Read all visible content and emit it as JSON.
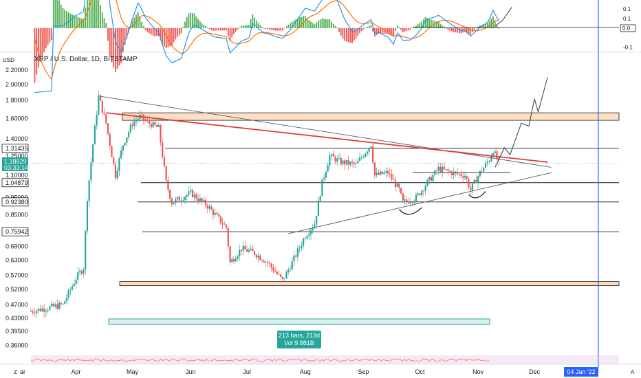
{
  "header": {
    "title": "XRP / U.S. Dollar, 1D, BITSTAMP",
    "currency_label": "USD"
  },
  "colors": {
    "up": "#26a69a",
    "down": "#ef5350",
    "trend": "#e53935",
    "zone_fill": "#ffcc99",
    "marker_blue": "#2962ff",
    "macd_line": "#2196f3",
    "signal_line": "#ff6d00",
    "hist_up": "#4caf50",
    "hist_down": "#ef5350"
  },
  "date_axis": {
    "labels": [
      "Z",
      "ar",
      "Apr",
      "May",
      "Jun",
      "Jul",
      "Aug",
      "Sep",
      "Oct",
      "Nov",
      "Dec"
    ],
    "highlight": "04 Jan '22",
    "corner_right": "A"
  },
  "price_axis": {
    "ticks": [
      "2.20000",
      "2.00000",
      "1.80000",
      "1.60000",
      "1.40000",
      "1.25000",
      "1.10000",
      "0.95000",
      "0.85000",
      "0.69000",
      "0.63000",
      "0.57000",
      "0.52000",
      "0.47000",
      "0.43000",
      "0.39500",
      "0.36000"
    ],
    "boxed_labels": [
      "1.31435",
      "1.04879",
      "0.92380",
      "0.75942"
    ],
    "current_price": "1.18929",
    "countdown": "03:33:14"
  },
  "macd_axis": {
    "ticks": [
      "0.1",
      "0.1",
      "0.0",
      "-0.1"
    ],
    "current": "0.0"
  },
  "range_measure": {
    "line1": "213 bars, 213d",
    "line2": "Vol 9.881B"
  },
  "chart_data": {
    "type": "candlestick",
    "title": "XRP / U.S. Dollar, 1D, BITSTAMP",
    "ylabel": "USD",
    "scale": "log",
    "ylim": [
      0.34,
      2.3
    ],
    "xlim": [
      "2021-03-08",
      "2022-01-15"
    ],
    "months": [
      [
        "ar",
        "2021-03-01"
      ],
      [
        "Apr",
        "2021-04-01"
      ],
      [
        "May",
        "2021-05-01"
      ],
      [
        "Jun",
        "2021-06-01"
      ],
      [
        "Jul",
        "2021-07-01"
      ],
      [
        "Aug",
        "2021-08-01"
      ],
      [
        "Sep",
        "2021-09-01"
      ],
      [
        "Oct",
        "2021-10-01"
      ],
      [
        "Nov",
        "2021-11-01"
      ],
      [
        "Dec",
        "2021-12-01"
      ]
    ],
    "ohlc_anchors": [
      [
        "2021-03-08",
        0.45
      ],
      [
        "2021-03-25",
        0.47
      ],
      [
        "2021-04-01",
        0.56
      ],
      [
        "2021-04-05",
        0.6
      ],
      [
        "2021-04-07",
        0.95
      ],
      [
        "2021-04-10",
        1.35
      ],
      [
        "2021-04-13",
        1.85
      ],
      [
        "2021-04-17",
        1.55
      ],
      [
        "2021-04-22",
        1.1
      ],
      [
        "2021-04-26",
        1.35
      ],
      [
        "2021-05-01",
        1.55
      ],
      [
        "2021-05-05",
        1.62
      ],
      [
        "2021-05-10",
        1.55
      ],
      [
        "2021-05-15",
        1.5
      ],
      [
        "2021-05-19",
        1.05
      ],
      [
        "2021-05-22",
        0.92
      ],
      [
        "2021-06-01",
        0.98
      ],
      [
        "2021-06-10",
        0.9
      ],
      [
        "2021-06-20",
        0.78
      ],
      [
        "2021-06-22",
        0.62
      ],
      [
        "2021-06-28",
        0.68
      ],
      [
        "2021-07-05",
        0.66
      ],
      [
        "2021-07-12",
        0.62
      ],
      [
        "2021-07-20",
        0.55
      ],
      [
        "2021-07-25",
        0.62
      ],
      [
        "2021-08-01",
        0.74
      ],
      [
        "2021-08-06",
        0.8
      ],
      [
        "2021-08-10",
        1.05
      ],
      [
        "2021-08-14",
        1.25
      ],
      [
        "2021-08-20",
        1.2
      ],
      [
        "2021-08-28",
        1.18
      ],
      [
        "2021-09-05",
        1.35
      ],
      [
        "2021-09-07",
        1.1
      ],
      [
        "2021-09-14",
        1.12
      ],
      [
        "2021-09-20",
        1.0
      ],
      [
        "2021-09-22",
        0.92
      ],
      [
        "2021-09-29",
        0.95
      ],
      [
        "2021-10-05",
        1.05
      ],
      [
        "2021-10-11",
        1.15
      ],
      [
        "2021-10-18",
        1.12
      ],
      [
        "2021-10-25",
        1.1
      ],
      [
        "2021-10-28",
        1.0
      ],
      [
        "2021-11-02",
        1.12
      ],
      [
        "2021-11-07",
        1.22
      ],
      [
        "2021-11-09",
        1.3
      ],
      [
        "2021-11-12",
        1.19
      ]
    ],
    "horizontal_levels": [
      {
        "price": 1.31435,
        "label": "1.31435"
      },
      {
        "price": 1.04879,
        "label": "1.04879"
      },
      {
        "price": 0.9238,
        "label": "0.92380"
      },
      {
        "price": 0.75942,
        "label": "0.75942"
      }
    ],
    "supply_zone": [
      1.58,
      1.66
    ],
    "demand_zone": [
      0.53,
      0.54
    ],
    "trendlines": [
      {
        "role": "upper-triangle",
        "from": [
          "2021-04-14",
          1.85
        ],
        "to": [
          "2021-12-10",
          1.16
        ]
      },
      {
        "role": "lower-triangle",
        "from": [
          "2021-07-23",
          0.75
        ],
        "to": [
          "2021-12-10",
          1.12
        ]
      },
      {
        "role": "red-resistance",
        "from": [
          "2021-04-17",
          1.66
        ],
        "to": [
          "2021-12-08",
          1.2
        ]
      }
    ],
    "projection_path": [
      [
        "2021-11-10",
        1.16
      ],
      [
        "2021-11-15",
        1.32
      ],
      [
        "2021-11-18",
        1.26
      ],
      [
        "2021-11-24",
        1.55
      ],
      [
        "2021-11-28",
        1.52
      ],
      [
        "2021-12-01",
        1.82
      ],
      [
        "2021-12-03",
        1.67
      ],
      [
        "2021-12-08",
        2.1
      ]
    ],
    "vertical_marker": "2022-01-04",
    "current_price": 1.18929,
    "macd": {
      "ylim": [
        -0.12,
        0.14
      ],
      "ticks": [
        0.1,
        0.0,
        -0.1
      ]
    }
  }
}
